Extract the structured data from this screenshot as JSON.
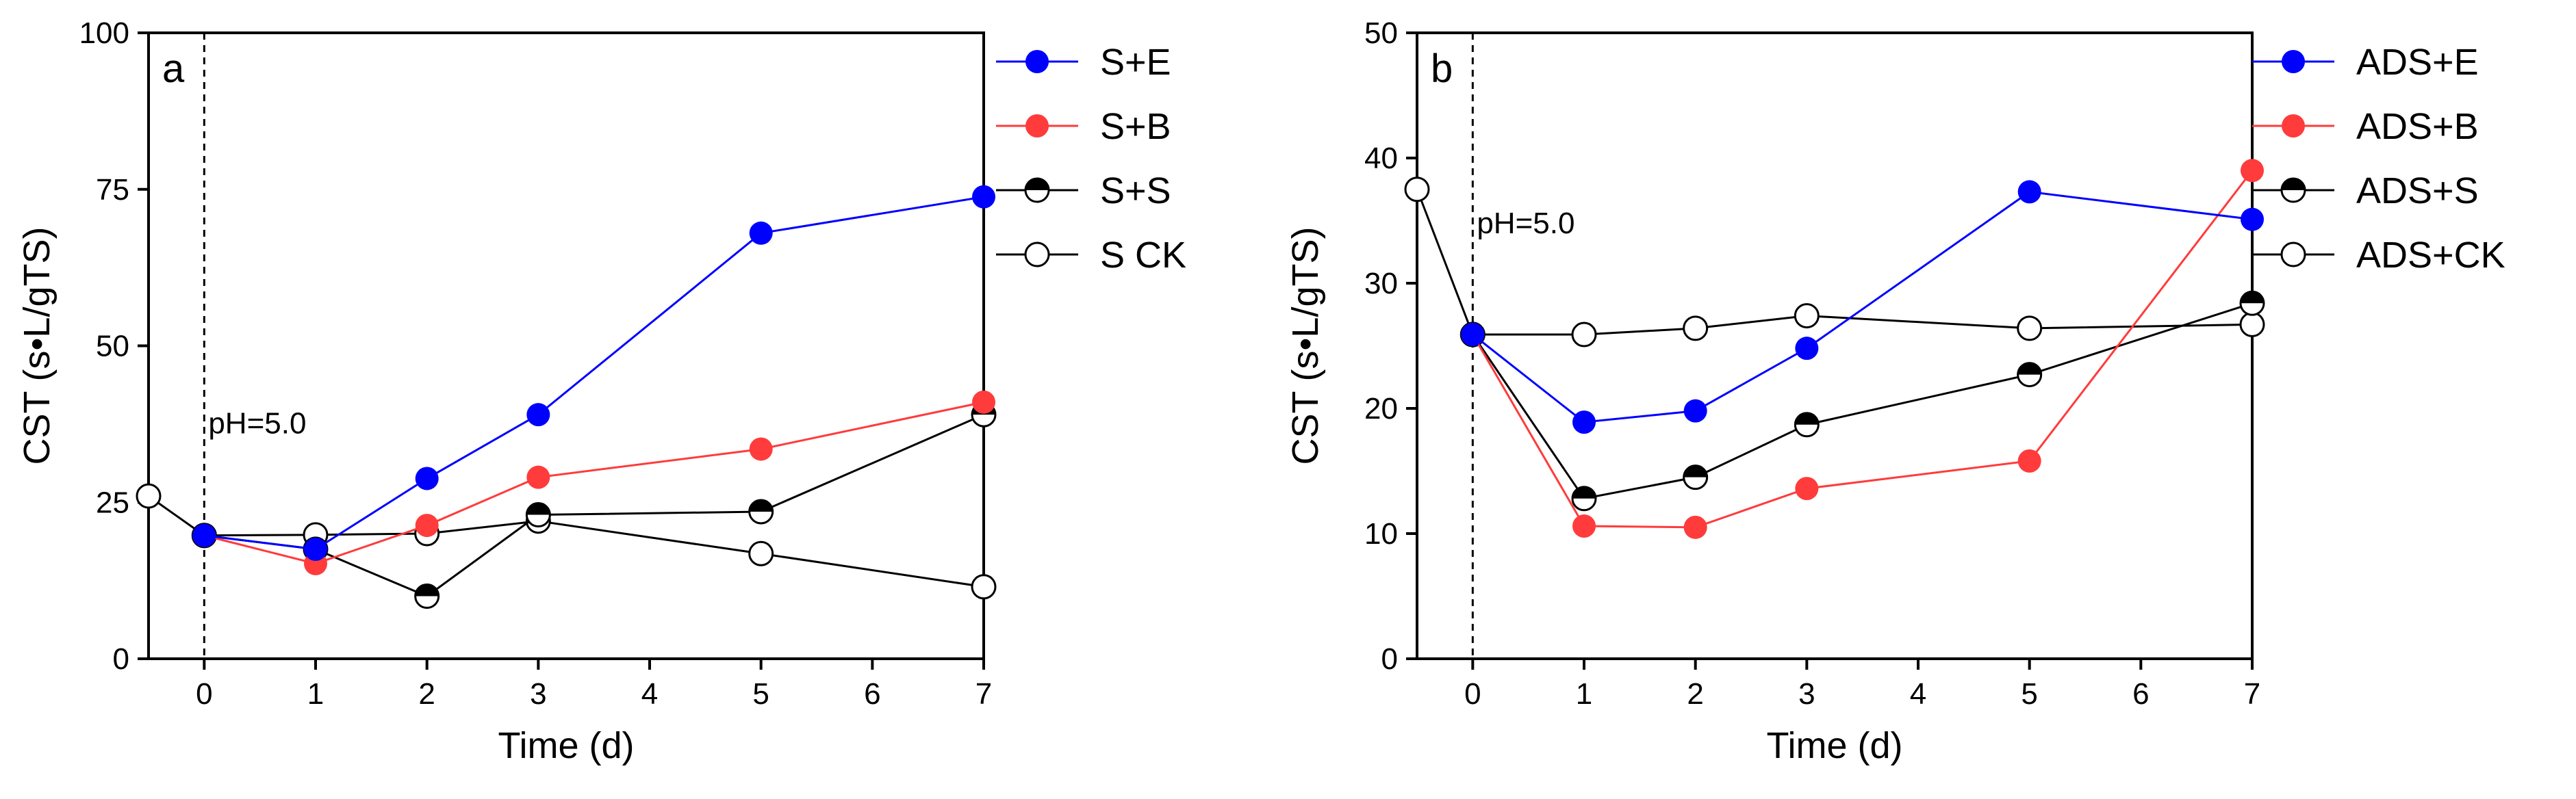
{
  "chart_data": [
    {
      "type": "line",
      "panel_label": "a",
      "xlabel": "Time (d)",
      "ylabel": "CST (s•L/gTS)",
      "xlim": [
        -0.5,
        7
      ],
      "ylim": [
        0,
        100
      ],
      "xticks": [
        0,
        1,
        2,
        3,
        4,
        5,
        6,
        7
      ],
      "yticks": [
        0,
        25,
        50,
        75,
        100
      ],
      "annotation": "pH=5.0",
      "annotation_at": {
        "x": 0,
        "y": 36
      },
      "vline_x": 0,
      "legend_position": "top-right outside",
      "series": [
        {
          "name": "S+E",
          "color": "#0000ff",
          "marker": "filled",
          "x": [
            0,
            1,
            2,
            3,
            5,
            7
          ],
          "y": [
            19.7,
            17.5,
            28.8,
            39.0,
            68.0,
            73.8
          ]
        },
        {
          "name": "S+B",
          "color": "#ff3b3b",
          "marker": "filled",
          "x": [
            0,
            1,
            2,
            3,
            5,
            7
          ],
          "y": [
            19.7,
            15.2,
            21.3,
            29.0,
            33.5,
            41.0
          ]
        },
        {
          "name": "S+S",
          "color": "#000000",
          "marker": "half",
          "x": [
            0,
            1,
            2,
            3,
            5,
            7
          ],
          "y": [
            19.7,
            17.5,
            10.0,
            23.0,
            23.5,
            39.0
          ]
        },
        {
          "name": "S CK",
          "color": "#000000",
          "marker": "open",
          "x": [
            -0.5,
            0,
            1,
            2,
            3,
            5,
            7
          ],
          "y": [
            26.0,
            19.7,
            19.8,
            20.0,
            22.0,
            16.8,
            11.5
          ]
        }
      ]
    },
    {
      "type": "line",
      "panel_label": "b",
      "xlabel": "Time (d)",
      "ylabel": "CST (s•L/gTS)",
      "xlim": [
        -0.5,
        7
      ],
      "ylim": [
        0,
        50
      ],
      "xticks": [
        0,
        1,
        2,
        3,
        4,
        5,
        6,
        7
      ],
      "yticks": [
        0,
        10,
        20,
        30,
        40,
        50
      ],
      "annotation": "pH=5.0",
      "annotation_at": {
        "x": 0,
        "y": 34
      },
      "vline_x": 0,
      "legend_position": "top-right outside",
      "series": [
        {
          "name": "ADS+E",
          "color": "#0000ff",
          "marker": "filled",
          "x": [
            0,
            1,
            2,
            3,
            5,
            7
          ],
          "y": [
            25.9,
            18.9,
            19.8,
            24.8,
            37.3,
            35.1
          ]
        },
        {
          "name": "ADS+B",
          "color": "#ff3b3b",
          "marker": "filled",
          "x": [
            0,
            1,
            2,
            3,
            5,
            7
          ],
          "y": [
            25.9,
            10.6,
            10.5,
            13.6,
            15.8,
            39.0
          ]
        },
        {
          "name": "ADS+S",
          "color": "#000000",
          "marker": "half",
          "x": [
            0,
            1,
            2,
            3,
            5,
            7
          ],
          "y": [
            25.9,
            12.8,
            14.5,
            18.7,
            22.7,
            28.4
          ]
        },
        {
          "name": "ADS+CK",
          "color": "#000000",
          "marker": "open",
          "x": [
            -0.5,
            0,
            1,
            2,
            3,
            5,
            7
          ],
          "y": [
            37.5,
            25.9,
            25.9,
            26.4,
            27.4,
            26.4,
            26.7
          ]
        }
      ]
    }
  ]
}
